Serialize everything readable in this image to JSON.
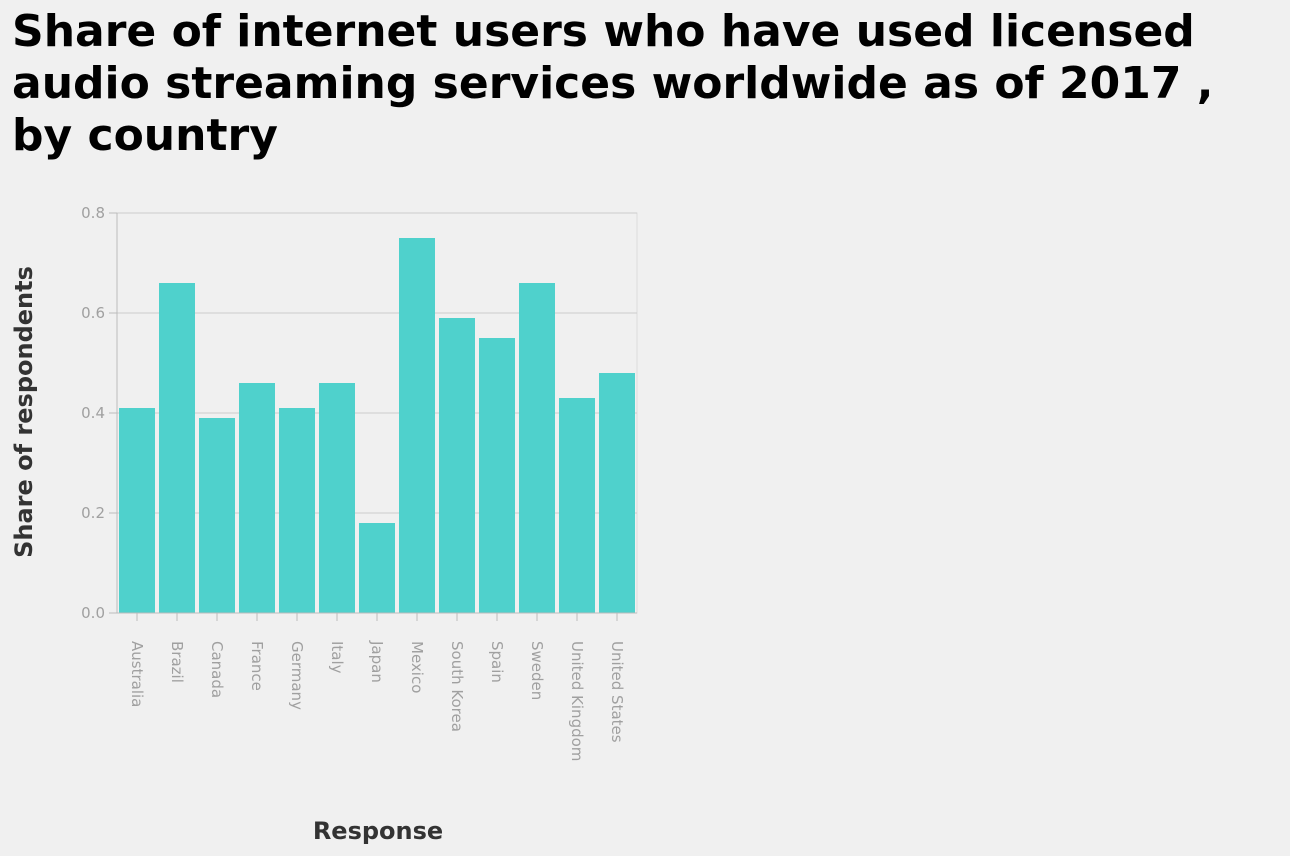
{
  "chart_data": {
    "type": "bar",
    "title": "Share of internet users who have used licensed audio streaming services worldwide as of 2017 , by country",
    "xlabel": "Response",
    "ylabel": "Share of respondents",
    "categories": [
      "Australia",
      "Brazil",
      "Canada",
      "France",
      "Germany",
      "Italy",
      "Japan",
      "Mexico",
      "South Korea",
      "Spain",
      "Sweden",
      "United Kingdom",
      "United States"
    ],
    "values": [
      0.41,
      0.66,
      0.39,
      0.46,
      0.41,
      0.46,
      0.18,
      0.75,
      0.59,
      0.55,
      0.66,
      0.43,
      0.48
    ],
    "ylim": [
      0,
      0.8
    ],
    "yticks": [
      "0.0",
      "0.2",
      "0.4",
      "0.6",
      "0.8"
    ],
    "grid": true,
    "bar_color": "#4fd1cc"
  }
}
